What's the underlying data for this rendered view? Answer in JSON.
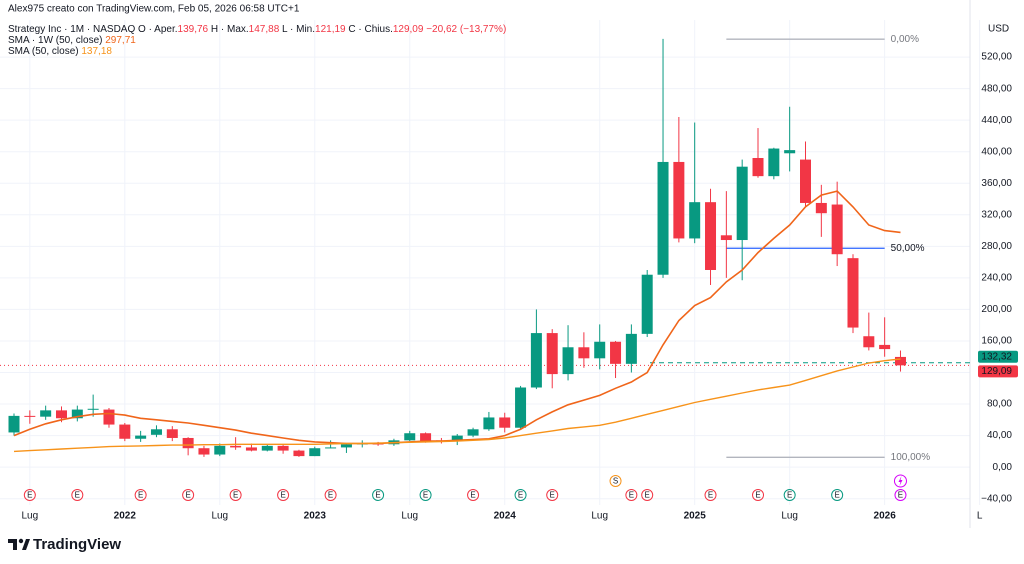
{
  "credit": "Alex975 creato con TradingView.com, Feb 05, 2026 06:58 UTC+1",
  "logo_text": "TradingView",
  "chart_data": {
    "type": "candlestick",
    "legend": {
      "symbol": "Strategy Inc · 1M · NASDAQ",
      "ohlc": [
        {
          "key": "O · Aper.",
          "value": "139,76"
        },
        {
          "key": "H · Max.",
          "value": "147,88"
        },
        {
          "key": "L · Min.",
          "value": "121,19"
        },
        {
          "key": "C · Chius.",
          "value": "129,09"
        }
      ],
      "change": "−20,62 (−13,77%)"
    },
    "currency": "USD",
    "categories": [
      null,
      "Lug",
      null,
      null,
      null,
      null,
      null,
      "2022",
      null,
      null,
      null,
      null,
      null,
      "Lug",
      null,
      null,
      null,
      null,
      null,
      "2023",
      null,
      null,
      null,
      null,
      null,
      "Lug",
      null,
      null,
      null,
      null,
      null,
      "2024",
      null,
      null,
      null,
      null,
      null,
      "Lug",
      null,
      null,
      null,
      null,
      null,
      "2025",
      null,
      null,
      null,
      null,
      null,
      "Lug",
      null,
      null,
      null,
      null,
      null,
      "2026",
      null,
      null,
      null,
      null,
      null,
      "L"
    ],
    "ohlc": {
      "up_color": "#089981",
      "down_color": "#f23645",
      "open": [
        44,
        65,
        64,
        72,
        62,
        73,
        73,
        54,
        36,
        41,
        48,
        37,
        24,
        16,
        27,
        25,
        21,
        27,
        21,
        14,
        24,
        25,
        29,
        30,
        29,
        34,
        43,
        34,
        33,
        40,
        48,
        63,
        50,
        101,
        170,
        118,
        152,
        138,
        159,
        131,
        169,
        244,
        387,
        290,
        336,
        294,
        288,
        392,
        369,
        398,
        390,
        335,
        333,
        265,
        166,
        155,
        139.76,
        null,
        null,
        null,
        null,
        null
      ],
      "high": [
        68,
        72,
        78,
        77,
        78,
        92,
        75,
        56,
        46,
        53,
        52,
        38,
        27,
        30,
        38,
        30,
        29,
        28,
        22,
        26,
        34,
        30,
        34,
        32,
        36,
        46,
        44,
        37,
        42,
        50,
        70,
        69,
        103,
        200,
        175,
        180,
        171,
        181,
        160,
        181,
        250,
        543,
        444,
        437,
        353,
        350,
        390,
        430,
        405,
        457,
        413,
        358,
        362,
        270,
        196,
        190,
        147.88,
        null,
        null,
        null,
        null,
        null
      ],
      "low": [
        40,
        55,
        60,
        57,
        58,
        64,
        50,
        33,
        32,
        38,
        33,
        15,
        13,
        14,
        22,
        20,
        20,
        17,
        13,
        14,
        24,
        18,
        25,
        27,
        27,
        33,
        31,
        30,
        28,
        38,
        46,
        44,
        49,
        99,
        100,
        110,
        126,
        124,
        113,
        120,
        165,
        240,
        285,
        284,
        231,
        240,
        237,
        367,
        365,
        375,
        330,
        292,
        255,
        170,
        148,
        140,
        121.19,
        null,
        null,
        null,
        null,
        null
      ],
      "close": [
        65,
        64,
        72,
        62,
        73,
        74,
        54,
        36,
        40,
        48,
        37,
        24,
        16,
        27,
        25,
        21,
        27,
        21,
        14,
        24,
        25,
        29,
        30,
        29,
        34,
        43,
        33,
        33,
        40,
        48,
        63,
        50,
        101,
        170,
        118,
        152,
        138,
        159,
        131,
        169,
        244,
        387,
        290,
        336,
        250,
        288,
        381,
        369,
        404,
        402,
        335,
        322,
        270,
        177,
        152,
        149.71,
        129.09,
        null,
        null,
        null,
        null,
        null
      ]
    },
    "lines": [
      {
        "name": "SMA · 1W (50, close)",
        "last_label": "297,71",
        "color": "#f0651a",
        "values": [
          40,
          48,
          55,
          60,
          64,
          67,
          68,
          66,
          62,
          60,
          58,
          56,
          53,
          50,
          47,
          43,
          40,
          37,
          34,
          32,
          31,
          30,
          30,
          30,
          31,
          32,
          33,
          33,
          34,
          35,
          36,
          40,
          48,
          60,
          70,
          79,
          85,
          91,
          100,
          108,
          120,
          155,
          186,
          205,
          215,
          235,
          250,
          272,
          290,
          307,
          330,
          345,
          350,
          330,
          307,
          300,
          297.71,
          null,
          null,
          null,
          null,
          null
        ]
      },
      {
        "name": "SMA (50, close)",
        "last_label": "137,18",
        "color": "#f7931a",
        "values": [
          20,
          21,
          22,
          23,
          24,
          25,
          26,
          26.5,
          27,
          27.5,
          28,
          28,
          28.5,
          28.5,
          29,
          29,
          29,
          29,
          29,
          29,
          29.5,
          30,
          30,
          30.5,
          31,
          31.5,
          32,
          32.5,
          33,
          34,
          35,
          37,
          40,
          43,
          46,
          49,
          51,
          53,
          57,
          62,
          67,
          72,
          77,
          82,
          86,
          90,
          94,
          98,
          101,
          104,
          110,
          116,
          122,
          127,
          132,
          135,
          137.18,
          null,
          null,
          null,
          null,
          null
        ]
      }
    ],
    "fib": [
      {
        "level": 0,
        "level_label": "0,00%",
        "price": 542.7,
        "color": "#b2b5be"
      },
      {
        "level": 50,
        "level_label": "50,00%",
        "price": 277.6,
        "color": "#2962ff"
      },
      {
        "level": 100,
        "level_label": "100,00%",
        "price": 12.5,
        "color": "#b2b5be"
      }
    ],
    "price_lines": [
      {
        "value": 132.32,
        "label": "132,32",
        "color": "#089981",
        "style": "dashed"
      },
      {
        "value": 129.09,
        "label": "129,09",
        "color": "#f23645",
        "style": "dotted"
      }
    ],
    "earnings": [
      null,
      {
        "label": "E",
        "color": "#f23645"
      },
      null,
      null,
      {
        "label": "E",
        "color": "#f23645"
      },
      null,
      null,
      null,
      {
        "label": "E",
        "color": "#f23645"
      },
      null,
      null,
      {
        "label": "E",
        "color": "#f23645"
      },
      null,
      null,
      {
        "label": "E",
        "color": "#f23645"
      },
      null,
      null,
      {
        "label": "E",
        "color": "#f23645"
      },
      null,
      null,
      {
        "label": "E",
        "color": "#f23645"
      },
      null,
      null,
      {
        "label": "E",
        "color": "#089981"
      },
      null,
      null,
      {
        "label": "E",
        "color": "#089981"
      },
      null,
      null,
      {
        "label": "E",
        "color": "#f23645"
      },
      null,
      null,
      {
        "label": "E",
        "color": "#089981"
      },
      null,
      {
        "label": "E",
        "color": "#f23645"
      },
      null,
      null,
      null,
      null,
      {
        "label": "E",
        "color": "#f23645"
      },
      {
        "label": "E",
        "color": "#f23645"
      },
      null,
      null,
      null,
      {
        "label": "E",
        "color": "#f23645"
      },
      null,
      null,
      {
        "label": "E",
        "color": "#f23645"
      },
      null,
      {
        "label": "E",
        "color": "#089981"
      },
      null,
      null,
      {
        "label": "E",
        "color": "#089981"
      },
      null,
      null,
      null,
      {
        "label": "E",
        "color": "#d500f9"
      },
      null,
      null,
      null,
      null,
      null
    ],
    "splits": [
      null,
      null,
      null,
      null,
      null,
      null,
      null,
      null,
      null,
      null,
      null,
      null,
      null,
      null,
      null,
      null,
      null,
      null,
      null,
      null,
      null,
      null,
      null,
      null,
      null,
      null,
      null,
      null,
      null,
      null,
      null,
      null,
      null,
      null,
      null,
      null,
      null,
      null,
      {
        "label": "S",
        "color": "#f7931a"
      },
      null,
      null,
      null,
      null,
      null,
      null,
      null,
      null,
      null,
      null,
      null,
      null,
      null,
      null,
      null,
      null,
      null,
      null,
      null,
      null,
      null,
      null,
      null
    ],
    "ylim": [
      -48,
      567
    ],
    "yticks": [
      {
        "value": -40,
        "label": "−40,00"
      },
      {
        "value": 0,
        "label": "0,00"
      },
      {
        "value": 40,
        "label": "40,00"
      },
      {
        "value": 80,
        "label": "80,00"
      },
      {
        "value": 120,
        "label": "120,00"
      },
      {
        "value": 160,
        "label": "160,00"
      },
      {
        "value": 200,
        "label": "200,00"
      },
      {
        "value": 240,
        "label": "240,00"
      },
      {
        "value": 280,
        "label": "280,00"
      },
      {
        "value": 320,
        "label": "320,00"
      },
      {
        "value": 360,
        "label": "360,00"
      },
      {
        "value": 400,
        "label": "400,00"
      },
      {
        "value": 440,
        "label": "440,00"
      },
      {
        "value": 480,
        "label": "480,00"
      },
      {
        "value": 520,
        "label": "520,00"
      }
    ],
    "grid": true
  }
}
